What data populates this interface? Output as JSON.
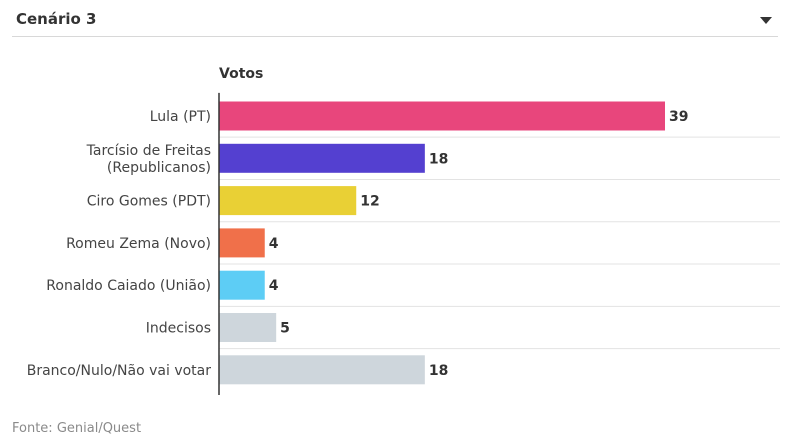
{
  "header": {
    "title": "Cenário 3",
    "dropdown_icon": "chevron-down-icon"
  },
  "chart_data": {
    "type": "bar",
    "orientation": "horizontal",
    "title": "",
    "ylabel": "Votos",
    "categories": [
      [
        "Lula (PT)"
      ],
      [
        "Tarcísio de Freitas",
        "(Republicanos)"
      ],
      [
        "Ciro Gomes (PDT)"
      ],
      [
        "Romeu Zema (Novo)"
      ],
      [
        "Ronaldo Caiado (União)"
      ],
      [
        "Indecisos"
      ],
      [
        "Branco/Nulo/Não vai votar"
      ]
    ],
    "values": [
      39,
      18,
      12,
      4,
      4,
      5,
      18
    ],
    "colors": [
      "#e8467c",
      "#5440d0",
      "#e9d035",
      "#f0704a",
      "#5dcdf5",
      "#ced6dc",
      "#ced6dc"
    ],
    "grid": true
  },
  "footer": {
    "source": "Fonte: Genial/Quest"
  }
}
